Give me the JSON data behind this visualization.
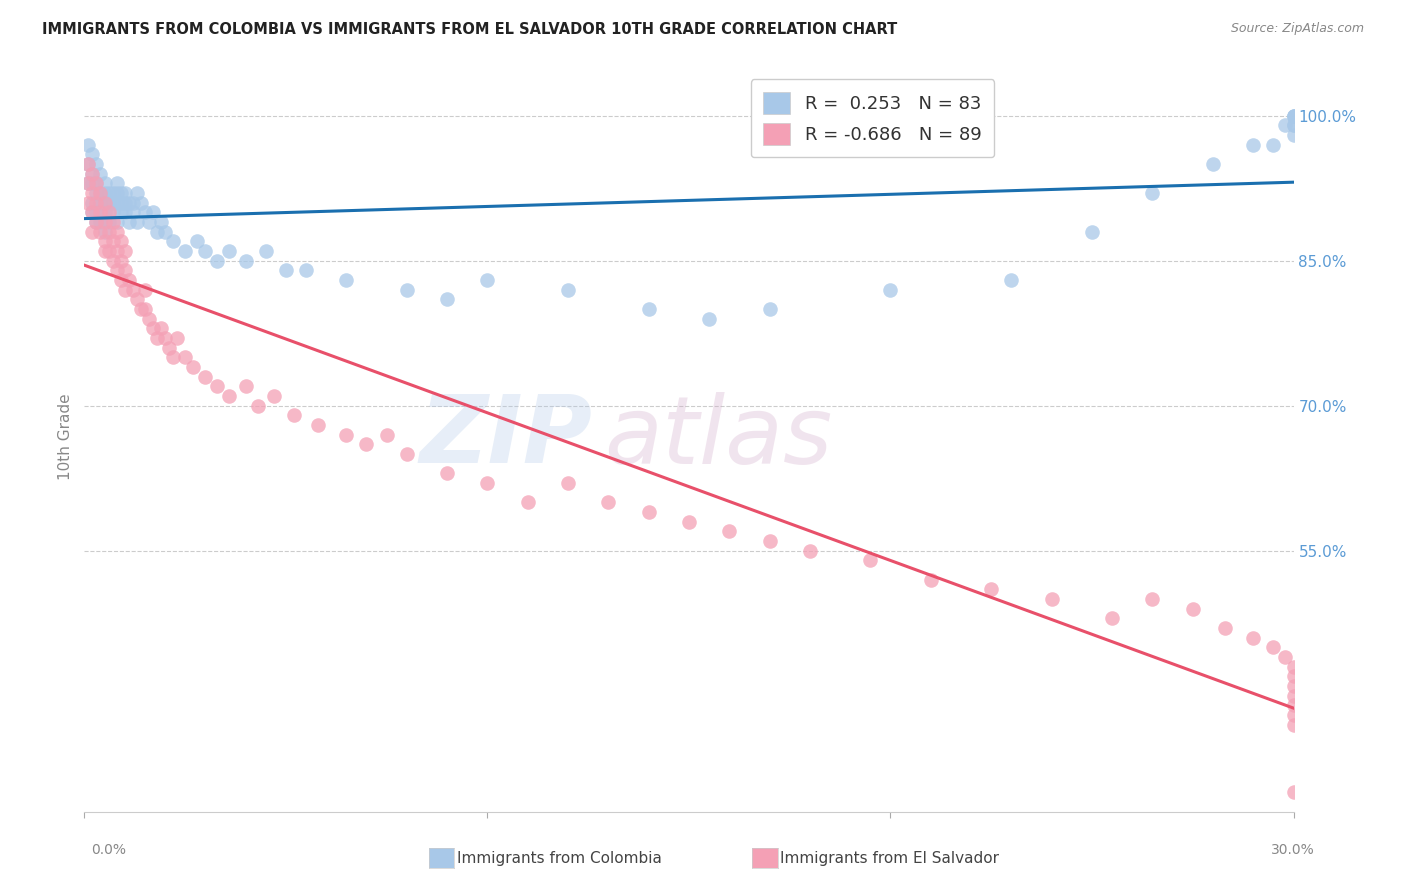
{
  "title": "IMMIGRANTS FROM COLOMBIA VS IMMIGRANTS FROM EL SALVADOR 10TH GRADE CORRELATION CHART",
  "source": "Source: ZipAtlas.com",
  "ylabel": "10th Grade",
  "ytick_right": [
    "100.0%",
    "85.0%",
    "70.0%",
    "55.0%"
  ],
  "ytick_right_vals": [
    1.0,
    0.85,
    0.7,
    0.55
  ],
  "legend_r_colombia": "R =  0.253",
  "legend_n_colombia": "N = 83",
  "legend_r_salvador": "R = -0.686",
  "legend_n_salvador": "N = 89",
  "color_colombia": "#a8c8e8",
  "color_salvador": "#f4a0b5",
  "trendline_colombia": "#1a6faf",
  "trendline_salvador": "#e8506a",
  "watermark_zip": "ZIP",
  "watermark_atlas": "atlas",
  "xmin": 0.0,
  "xmax": 0.3,
  "ymin": 0.28,
  "ymax": 1.055,
  "colombia_x": [
    0.001,
    0.001,
    0.001,
    0.002,
    0.002,
    0.002,
    0.002,
    0.002,
    0.003,
    0.003,
    0.003,
    0.003,
    0.003,
    0.004,
    0.004,
    0.004,
    0.004,
    0.005,
    0.005,
    0.005,
    0.005,
    0.005,
    0.006,
    0.006,
    0.006,
    0.007,
    0.007,
    0.007,
    0.008,
    0.008,
    0.008,
    0.008,
    0.009,
    0.009,
    0.009,
    0.01,
    0.01,
    0.01,
    0.011,
    0.011,
    0.012,
    0.012,
    0.013,
    0.013,
    0.014,
    0.015,
    0.016,
    0.017,
    0.018,
    0.019,
    0.02,
    0.022,
    0.025,
    0.028,
    0.03,
    0.033,
    0.036,
    0.04,
    0.045,
    0.05,
    0.055,
    0.065,
    0.08,
    0.09,
    0.1,
    0.12,
    0.14,
    0.155,
    0.17,
    0.2,
    0.23,
    0.25,
    0.265,
    0.28,
    0.29,
    0.295,
    0.298,
    0.3,
    0.3,
    0.3,
    0.3,
    0.3,
    0.3
  ],
  "colombia_y": [
    0.97,
    0.95,
    0.93,
    0.96,
    0.94,
    0.93,
    0.91,
    0.9,
    0.95,
    0.93,
    0.92,
    0.9,
    0.89,
    0.94,
    0.92,
    0.91,
    0.89,
    0.93,
    0.92,
    0.91,
    0.9,
    0.88,
    0.92,
    0.91,
    0.89,
    0.92,
    0.91,
    0.9,
    0.93,
    0.92,
    0.91,
    0.89,
    0.92,
    0.91,
    0.9,
    0.92,
    0.91,
    0.9,
    0.91,
    0.89,
    0.91,
    0.9,
    0.92,
    0.89,
    0.91,
    0.9,
    0.89,
    0.9,
    0.88,
    0.89,
    0.88,
    0.87,
    0.86,
    0.87,
    0.86,
    0.85,
    0.86,
    0.85,
    0.86,
    0.84,
    0.84,
    0.83,
    0.82,
    0.81,
    0.83,
    0.82,
    0.8,
    0.79,
    0.8,
    0.82,
    0.83,
    0.88,
    0.92,
    0.95,
    0.97,
    0.97,
    0.99,
    0.98,
    0.99,
    1.0,
    0.99,
    1.0,
    1.0
  ],
  "salvador_x": [
    0.001,
    0.001,
    0.001,
    0.002,
    0.002,
    0.002,
    0.002,
    0.003,
    0.003,
    0.003,
    0.004,
    0.004,
    0.004,
    0.005,
    0.005,
    0.005,
    0.005,
    0.006,
    0.006,
    0.006,
    0.007,
    0.007,
    0.007,
    0.008,
    0.008,
    0.008,
    0.009,
    0.009,
    0.009,
    0.01,
    0.01,
    0.01,
    0.011,
    0.012,
    0.013,
    0.014,
    0.015,
    0.015,
    0.016,
    0.017,
    0.018,
    0.019,
    0.02,
    0.021,
    0.022,
    0.023,
    0.025,
    0.027,
    0.03,
    0.033,
    0.036,
    0.04,
    0.043,
    0.047,
    0.052,
    0.058,
    0.065,
    0.07,
    0.075,
    0.08,
    0.09,
    0.1,
    0.11,
    0.12,
    0.13,
    0.14,
    0.15,
    0.16,
    0.17,
    0.18,
    0.195,
    0.21,
    0.225,
    0.24,
    0.255,
    0.265,
    0.275,
    0.283,
    0.29,
    0.295,
    0.298,
    0.3,
    0.3,
    0.3,
    0.3,
    0.3,
    0.3,
    0.3,
    0.3
  ],
  "salvador_y": [
    0.95,
    0.93,
    0.91,
    0.94,
    0.92,
    0.9,
    0.88,
    0.93,
    0.91,
    0.89,
    0.92,
    0.9,
    0.88,
    0.91,
    0.89,
    0.87,
    0.86,
    0.9,
    0.88,
    0.86,
    0.89,
    0.87,
    0.85,
    0.88,
    0.86,
    0.84,
    0.87,
    0.85,
    0.83,
    0.86,
    0.84,
    0.82,
    0.83,
    0.82,
    0.81,
    0.8,
    0.82,
    0.8,
    0.79,
    0.78,
    0.77,
    0.78,
    0.77,
    0.76,
    0.75,
    0.77,
    0.75,
    0.74,
    0.73,
    0.72,
    0.71,
    0.72,
    0.7,
    0.71,
    0.69,
    0.68,
    0.67,
    0.66,
    0.67,
    0.65,
    0.63,
    0.62,
    0.6,
    0.62,
    0.6,
    0.59,
    0.58,
    0.57,
    0.56,
    0.55,
    0.54,
    0.52,
    0.51,
    0.5,
    0.48,
    0.5,
    0.49,
    0.47,
    0.46,
    0.45,
    0.44,
    0.43,
    0.42,
    0.41,
    0.4,
    0.39,
    0.38,
    0.37,
    0.3
  ]
}
